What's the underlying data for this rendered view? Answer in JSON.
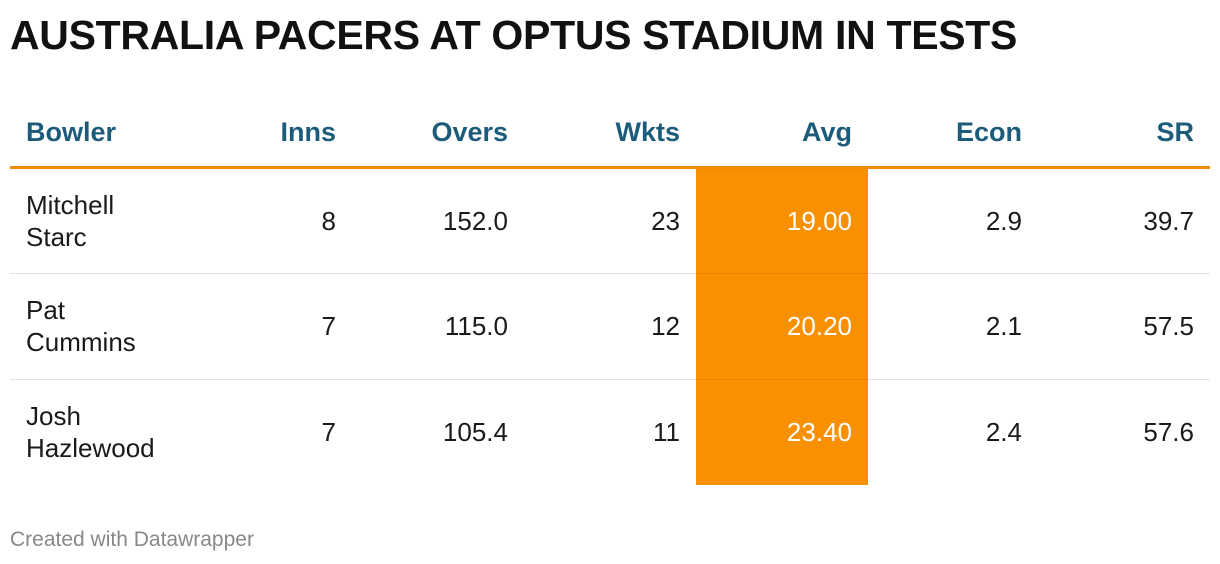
{
  "title": "AUSTRALIA PACERS AT OPTUS STADIUM IN TESTS",
  "credit": "Created with Datawrapper",
  "colors": {
    "header_text": "#1c5c7a",
    "header_rule": "#f08c00",
    "highlight": "#f89000",
    "highlight_text": "#ffffff"
  },
  "chart_data": {
    "type": "table",
    "columns": [
      "Bowler",
      "Inns",
      "Overs",
      "Wkts",
      "Avg",
      "Econ",
      "SR"
    ],
    "highlight_column": "Avg",
    "rows": [
      {
        "name_lines": [
          "Mitchell",
          "Starc"
        ],
        "inns": "8",
        "overs": "152.0",
        "wkts": "23",
        "avg": "19.00",
        "econ": "2.9",
        "sr": "39.7"
      },
      {
        "name_lines": [
          "Pat",
          "Cummins"
        ],
        "inns": "7",
        "overs": "115.0",
        "wkts": "12",
        "avg": "20.20",
        "econ": "2.1",
        "sr": "57.5"
      },
      {
        "name_lines": [
          "Josh",
          "Hazlewood"
        ],
        "inns": "7",
        "overs": "105.4",
        "wkts": "11",
        "avg": "23.40",
        "econ": "2.4",
        "sr": "57.6"
      }
    ]
  }
}
